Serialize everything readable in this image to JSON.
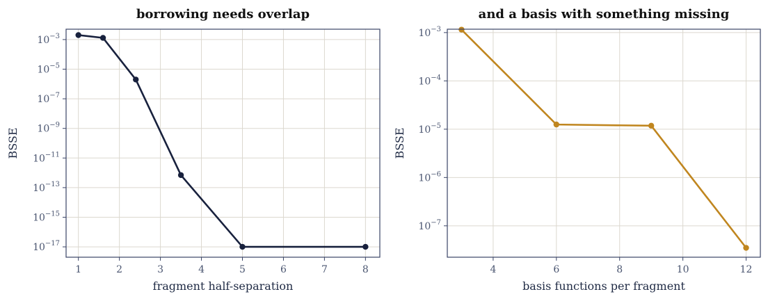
{
  "chart_data": [
    {
      "type": "line",
      "title": "borrowing needs overlap",
      "xlabel": "fragment half-separation",
      "ylabel": "BSSE",
      "yscale": "log",
      "xlim": [
        0.7,
        8.35
      ],
      "ylim_log10": [
        -17.7,
        -2.3
      ],
      "xticks": [
        1,
        2,
        3,
        4,
        5,
        6,
        7,
        8
      ],
      "xtick_labels": [
        "1",
        "2",
        "3",
        "4",
        "5",
        "6",
        "7",
        "8"
      ],
      "yticks_log10": [
        -3,
        -5,
        -7,
        -9,
        -11,
        -13,
        -15,
        -17
      ],
      "ytick_labels": [
        {
          "base": "10",
          "exp": "−3"
        },
        {
          "base": "10",
          "exp": "−5"
        },
        {
          "base": "10",
          "exp": "−7"
        },
        {
          "base": "10",
          "exp": "−9"
        },
        {
          "base": "10",
          "exp": "−11"
        },
        {
          "base": "10",
          "exp": "−13"
        },
        {
          "base": "10",
          "exp": "−15"
        },
        {
          "base": "10",
          "exp": "−17"
        }
      ],
      "grid": true,
      "series": [
        {
          "color": "#18213d",
          "x": [
            1.0,
            1.6,
            2.4,
            3.5,
            5.0,
            8.0
          ],
          "y": [
            0.002,
            0.0013,
            2e-06,
            7e-13,
            1e-17,
            1e-17
          ]
        }
      ]
    },
    {
      "type": "line",
      "title": "and a basis with something missing",
      "xlabel": "basis functions per fragment",
      "ylabel": "BSSE",
      "yscale": "log",
      "xlim": [
        2.55,
        12.45
      ],
      "ylim_log10": [
        -7.65,
        -2.93
      ],
      "xticks": [
        4,
        6,
        8,
        10,
        12
      ],
      "xtick_labels": [
        "4",
        "6",
        "8",
        "10",
        "12"
      ],
      "yticks_log10": [
        -3,
        -4,
        -5,
        -6,
        -7
      ],
      "ytick_labels": [
        {
          "base": "10",
          "exp": "−3"
        },
        {
          "base": "10",
          "exp": "−4"
        },
        {
          "base": "10",
          "exp": "−5"
        },
        {
          "base": "10",
          "exp": "−6"
        },
        {
          "base": "10",
          "exp": "−7"
        }
      ],
      "grid": true,
      "series": [
        {
          "color": "#c0861f",
          "x": [
            3,
            6,
            9,
            12
          ],
          "y": [
            0.00115,
            1.25e-05,
            1.18e-05,
            3.5e-08
          ]
        }
      ]
    }
  ]
}
